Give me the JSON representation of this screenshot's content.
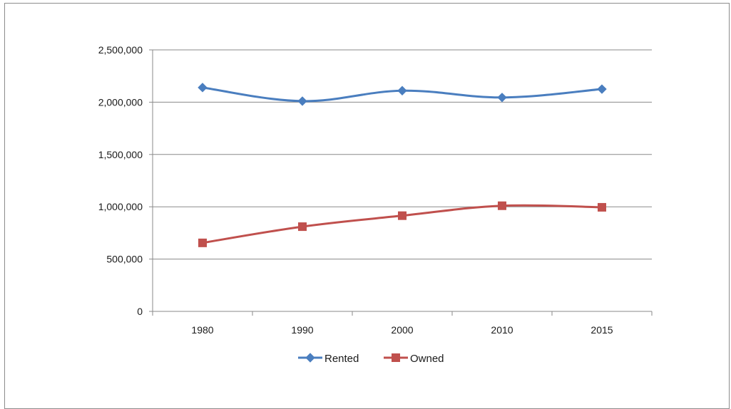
{
  "chart_data": {
    "type": "line",
    "categories": [
      "1980",
      "1990",
      "2000",
      "2010",
      "2015"
    ],
    "series": [
      {
        "name": "Rented",
        "values": [
          2140000,
          2010000,
          2110000,
          2045000,
          2125000
        ],
        "color": "#4a7ebf",
        "marker": "diamond"
      },
      {
        "name": "Owned",
        "values": [
          655000,
          810000,
          915000,
          1010000,
          995000
        ],
        "color": "#c0504d",
        "marker": "square"
      }
    ],
    "yticks": [
      "0",
      "500,000",
      "1,000,000",
      "1,500,000",
      "2,000,000",
      "2,500,000"
    ],
    "ylim": [
      0,
      2500000
    ],
    "grid": true,
    "legend": "bottom"
  }
}
